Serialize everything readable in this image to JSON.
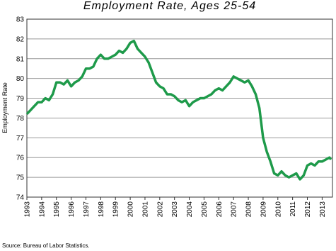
{
  "chart_data": {
    "type": "line",
    "title": "Employment Rate, Ages 25-54",
    "y_label": "Employment Rate",
    "source": "Source: Bureau of Labor Statistics.",
    "x": [
      1993.0,
      1993.25,
      1993.5,
      1993.75,
      1994.0,
      1994.25,
      1994.5,
      1994.75,
      1995.0,
      1995.25,
      1995.5,
      1995.75,
      1996.0,
      1996.25,
      1996.5,
      1996.75,
      1997.0,
      1997.25,
      1997.5,
      1997.75,
      1998.0,
      1998.25,
      1998.5,
      1998.75,
      1999.0,
      1999.25,
      1999.5,
      1999.75,
      2000.0,
      2000.25,
      2000.5,
      2000.75,
      2001.0,
      2001.25,
      2001.5,
      2001.75,
      2002.0,
      2002.25,
      2002.5,
      2002.75,
      2003.0,
      2003.25,
      2003.5,
      2003.75,
      2004.0,
      2004.25,
      2004.5,
      2004.75,
      2005.0,
      2005.25,
      2005.5,
      2005.75,
      2006.0,
      2006.25,
      2006.5,
      2006.75,
      2007.0,
      2007.25,
      2007.5,
      2007.75,
      2008.0,
      2008.25,
      2008.5,
      2008.75,
      2009.0,
      2009.25,
      2009.5,
      2009.75,
      2010.0,
      2010.25,
      2010.5,
      2010.75,
      2011.0,
      2011.25,
      2011.5,
      2011.75,
      2012.0,
      2012.25,
      2012.5,
      2012.75,
      2013.0,
      2013.25,
      2013.5,
      2013.6
    ],
    "series": [
      {
        "name": "Employment Rate",
        "color": "#1e9a4a",
        "values": [
          78.2,
          78.4,
          78.6,
          78.8,
          78.8,
          79.0,
          78.9,
          79.2,
          79.8,
          79.8,
          79.7,
          79.9,
          79.6,
          79.8,
          79.9,
          80.1,
          80.5,
          80.5,
          80.6,
          81.0,
          81.2,
          81.0,
          81.0,
          81.1,
          81.2,
          81.4,
          81.3,
          81.5,
          81.8,
          81.9,
          81.5,
          81.3,
          81.1,
          80.8,
          80.3,
          79.8,
          79.6,
          79.5,
          79.2,
          79.2,
          79.1,
          78.9,
          78.8,
          78.9,
          78.6,
          78.8,
          78.9,
          79.0,
          79.0,
          79.1,
          79.2,
          79.4,
          79.5,
          79.4,
          79.6,
          79.8,
          80.1,
          80.0,
          79.9,
          79.8,
          79.9,
          79.6,
          79.2,
          78.5,
          77.0,
          76.3,
          75.8,
          75.2,
          75.1,
          75.3,
          75.1,
          75.0,
          75.1,
          75.2,
          74.9,
          75.1,
          75.6,
          75.7,
          75.6,
          75.8,
          75.8,
          75.9,
          76.0,
          75.9
        ]
      }
    ],
    "xlim": [
      1993,
      2013.7
    ],
    "xticks": [
      1993,
      1994,
      1995,
      1996,
      1997,
      1998,
      1999,
      2000,
      2001,
      2002,
      2003,
      2004,
      2005,
      2006,
      2007,
      2008,
      2009,
      2010,
      2011,
      2012,
      2013
    ],
    "ylim": [
      74,
      83
    ],
    "yticks": [
      74,
      75,
      76,
      77,
      78,
      79,
      80,
      81,
      82,
      83
    ],
    "grid": true
  }
}
